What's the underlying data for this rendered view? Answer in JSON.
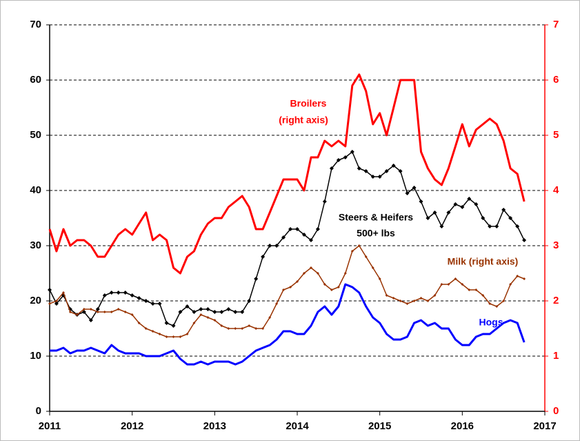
{
  "chart_data": {
    "type": "line",
    "x": [
      2011,
      2011.083,
      2011.167,
      2011.25,
      2011.333,
      2011.417,
      2011.5,
      2011.583,
      2011.667,
      2011.75,
      2011.833,
      2011.917,
      2012,
      2012.083,
      2012.167,
      2012.25,
      2012.333,
      2012.417,
      2012.5,
      2012.583,
      2012.667,
      2012.75,
      2012.833,
      2012.917,
      2013,
      2013.083,
      2013.167,
      2013.25,
      2013.333,
      2013.417,
      2013.5,
      2013.583,
      2013.667,
      2013.75,
      2013.833,
      2013.917,
      2014,
      2014.083,
      2014.167,
      2014.25,
      2014.333,
      2014.417,
      2014.5,
      2014.583,
      2014.667,
      2014.75,
      2014.833,
      2014.917,
      2015,
      2015.083,
      2015.167,
      2015.25,
      2015.333,
      2015.417,
      2015.5,
      2015.583,
      2015.667,
      2015.75,
      2015.833,
      2015.917,
      2016,
      2016.083,
      2016.167,
      2016.25,
      2016.333,
      2016.417,
      2016.5,
      2016.583,
      2016.667,
      2016.75
    ],
    "xlim": [
      2011,
      2017
    ],
    "xticks": [
      2011,
      2012,
      2013,
      2014,
      2015,
      2016,
      2017
    ],
    "ylim": [
      0,
      70
    ],
    "yticks": [
      0,
      10,
      20,
      30,
      40,
      50,
      60,
      70
    ],
    "y2lim": [
      0,
      7
    ],
    "y2ticks": [
      0,
      1,
      2,
      3,
      4,
      5,
      6,
      7
    ],
    "grid": true,
    "series": [
      {
        "name": "Broilers",
        "color": "#ff0000",
        "axis": "y2",
        "width": 3,
        "values": [
          3.3,
          2.9,
          3.3,
          3.0,
          3.1,
          3.1,
          3.0,
          2.8,
          2.8,
          3.0,
          3.2,
          3.3,
          3.2,
          3.4,
          3.6,
          3.1,
          3.2,
          3.1,
          2.6,
          2.5,
          2.8,
          2.9,
          3.2,
          3.4,
          3.5,
          3.5,
          3.7,
          3.8,
          3.9,
          3.7,
          3.3,
          3.3,
          3.6,
          3.9,
          4.2,
          4.2,
          4.2,
          4.0,
          4.6,
          4.6,
          4.9,
          4.8,
          4.9,
          4.8,
          5.9,
          6.1,
          5.8,
          5.2,
          5.4,
          5.0,
          5.5,
          6.0,
          6.0,
          6.0,
          4.7,
          4.4,
          4.2,
          4.1,
          4.4,
          4.8,
          5.2,
          4.8,
          5.1,
          5.2,
          5.3,
          5.2,
          4.9,
          4.4,
          4.3,
          3.8
        ]
      },
      {
        "name": "Steers & Heifers",
        "color": "#000000",
        "width": 1.5,
        "marker": "diamond",
        "values": [
          22,
          19.5,
          21,
          18.5,
          17.5,
          18,
          16.5,
          18.5,
          21,
          21.5,
          21.5,
          21.5,
          21,
          20.5,
          20,
          19.5,
          19.5,
          16,
          15.5,
          18,
          19,
          18,
          18.5,
          18.5,
          18,
          18,
          18.5,
          18,
          18,
          20,
          24,
          28,
          30,
          30,
          31.5,
          33,
          33,
          32,
          31,
          33,
          38,
          44,
          45.5,
          46,
          47,
          44,
          43.5,
          42.5,
          42.5,
          43.5,
          44.5,
          43.5,
          39.5,
          40.5,
          38,
          35,
          36,
          33.5,
          36,
          37.5,
          37,
          38.5,
          37.5,
          35,
          33.5,
          33.5,
          36.5,
          35,
          33.5,
          31
        ]
      },
      {
        "name": "Milk",
        "color": "#993300",
        "axis": "y2",
        "width": 1.5,
        "marker": "dot",
        "values": [
          1.95,
          2.0,
          2.15,
          1.8,
          1.75,
          1.85,
          1.85,
          1.8,
          1.8,
          1.8,
          1.85,
          1.8,
          1.75,
          1.6,
          1.5,
          1.45,
          1.4,
          1.35,
          1.35,
          1.35,
          1.4,
          1.6,
          1.75,
          1.7,
          1.65,
          1.55,
          1.5,
          1.5,
          1.5,
          1.55,
          1.5,
          1.5,
          1.7,
          1.95,
          2.2,
          2.25,
          2.35,
          2.5,
          2.6,
          2.5,
          2.3,
          2.2,
          2.25,
          2.5,
          2.9,
          3.0,
          2.8,
          2.6,
          2.4,
          2.1,
          2.05,
          2.0,
          1.95,
          2.0,
          2.05,
          2.0,
          2.1,
          2.3,
          2.3,
          2.4,
          2.3,
          2.2,
          2.2,
          2.1,
          1.95,
          1.9,
          2.0,
          2.3,
          2.45,
          2.4
        ]
      },
      {
        "name": "Hogs",
        "color": "#0000ff",
        "width": 3,
        "values": [
          11,
          11,
          11.5,
          10.5,
          11,
          11,
          11.5,
          11,
          10.5,
          12,
          11,
          10.5,
          10.5,
          10.5,
          10,
          10,
          10,
          10.5,
          11,
          9.5,
          8.5,
          8.5,
          9,
          8.5,
          9,
          9,
          9,
          8.5,
          9,
          10,
          11,
          11.5,
          12,
          13,
          14.5,
          14.5,
          14,
          14,
          15.5,
          18,
          19,
          17.5,
          19,
          23,
          22.5,
          21.5,
          19,
          17,
          16,
          14,
          13,
          13,
          13.5,
          16,
          16.5,
          15.5,
          16,
          15,
          15,
          13,
          12,
          12,
          13.5,
          14,
          14,
          15,
          16,
          16.5,
          16,
          12.5
        ]
      }
    ],
    "annotations": [
      {
        "text": "Broilers",
        "color": "#ff0000"
      },
      {
        "text": "(right axis)",
        "color": "#ff0000"
      },
      {
        "text": "Steers & Heifers",
        "color": "#000000"
      },
      {
        "text": "500+ lbs",
        "color": "#000000"
      },
      {
        "text": "Milk (right axis)",
        "color": "#993300"
      },
      {
        "text": "Hogs",
        "color": "#0000ff"
      }
    ]
  }
}
